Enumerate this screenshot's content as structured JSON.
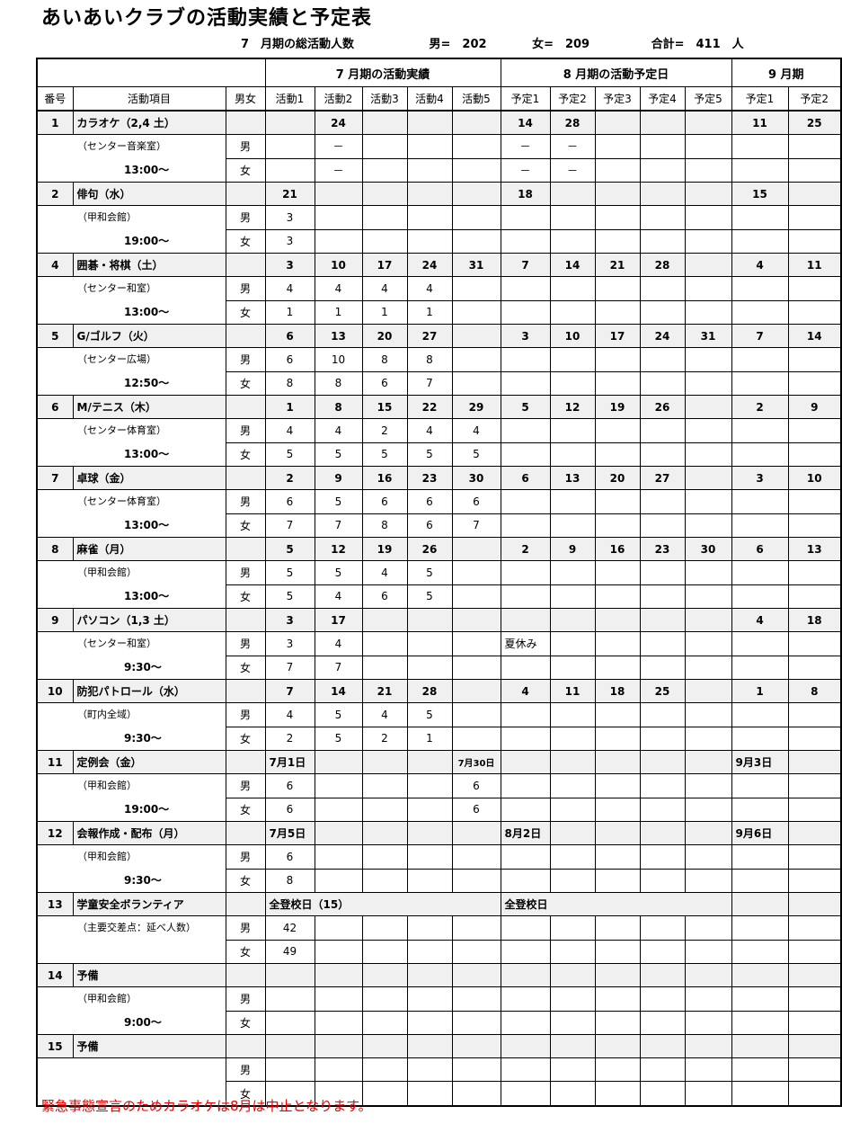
{
  "title": "あいあいクラブの活動実績と予定表",
  "summary": {
    "label": "7　月期の総活動人数",
    "male": "男=　202",
    "female": "女=　209",
    "total": "合計=　411　人"
  },
  "headers": {
    "july": "7 月期の活動実績",
    "aug": "8 月期の活動予定日",
    "sep": "9 月期",
    "cols": [
      "番号",
      "活動項目",
      "男女",
      "活動1",
      "活動2",
      "活動3",
      "活動4",
      "活動5",
      "予定1",
      "予定2",
      "予定3",
      "予定4",
      "予定5",
      "予定1",
      "予定2"
    ]
  },
  "gender": {
    "male": "男",
    "female": "女"
  },
  "activities": [
    {
      "no": "1",
      "name": "カラオケ（2,4 土）",
      "place": "（センター音楽室）",
      "time": "13:00～",
      "top": [
        "",
        "24",
        "",
        "",
        "",
        "14",
        "28",
        "",
        "",
        "",
        "11",
        "25"
      ],
      "male": [
        "",
        "－",
        "",
        "",
        "",
        "－",
        "－",
        "",
        "",
        "",
        "",
        ""
      ],
      "female": [
        "",
        "－",
        "",
        "",
        "",
        "－",
        "－",
        "",
        "",
        "",
        "",
        ""
      ]
    },
    {
      "no": "2",
      "name": "俳句（水）",
      "place": "（甲和会館）",
      "time": "19:00～",
      "top": [
        "21",
        "",
        "",
        "",
        "",
        "18",
        "",
        "",
        "",
        "",
        "15",
        ""
      ],
      "male": [
        "3",
        "",
        "",
        "",
        "",
        "",
        "",
        "",
        "",
        "",
        "",
        ""
      ],
      "female": [
        "3",
        "",
        "",
        "",
        "",
        "",
        "",
        "",
        "",
        "",
        "",
        ""
      ]
    },
    {
      "no": "4",
      "name": "囲碁・将棋（土）",
      "place": "（センター和室）",
      "time": "13:00～",
      "top": [
        "3",
        "10",
        "17",
        "24",
        "31",
        "7",
        "14",
        "21",
        "28",
        "",
        "4",
        "11"
      ],
      "male": [
        "4",
        "4",
        "4",
        "4",
        "",
        "",
        "",
        "",
        "",
        "",
        "",
        ""
      ],
      "female": [
        "1",
        "1",
        "1",
        "1",
        "",
        "",
        "",
        "",
        "",
        "",
        "",
        ""
      ]
    },
    {
      "no": "5",
      "name": "G/ゴルフ（火）",
      "place": "（センター広場）",
      "time": "12:50～",
      "top": [
        "6",
        "13",
        "20",
        "27",
        "",
        "3",
        "10",
        "17",
        "24",
        "31",
        "7",
        "14"
      ],
      "male": [
        "6",
        "10",
        "8",
        "8",
        "",
        "",
        "",
        "",
        "",
        "",
        "",
        ""
      ],
      "female": [
        "8",
        "8",
        "6",
        "7",
        "",
        "",
        "",
        "",
        "",
        "",
        "",
        ""
      ]
    },
    {
      "no": "6",
      "name": "M/テニス（木）",
      "place": "（センター体育室）",
      "time": "13:00～",
      "top": [
        "1",
        "8",
        "15",
        "22",
        "29",
        "5",
        "12",
        "19",
        "26",
        "",
        "2",
        "9"
      ],
      "male": [
        "4",
        "4",
        "2",
        "4",
        "4",
        "",
        "",
        "",
        "",
        "",
        "",
        ""
      ],
      "female": [
        "5",
        "5",
        "5",
        "5",
        "5",
        "",
        "",
        "",
        "",
        "",
        "",
        ""
      ]
    },
    {
      "no": "7",
      "name": "卓球（金）",
      "place": "（センター体育室）",
      "time": "13:00～",
      "top": [
        "2",
        "9",
        "16",
        "23",
        "30",
        "6",
        "13",
        "20",
        "27",
        "",
        "3",
        "10"
      ],
      "male": [
        "6",
        "5",
        "6",
        "6",
        "6",
        "",
        "",
        "",
        "",
        "",
        "",
        ""
      ],
      "female": [
        "7",
        "7",
        "8",
        "6",
        "7",
        "",
        "",
        "",
        "",
        "",
        "",
        ""
      ]
    },
    {
      "no": "8",
      "name": "麻雀（月）",
      "place": "（甲和会館）",
      "time": "13:00～",
      "top": [
        "5",
        "12",
        "19",
        "26",
        "",
        "2",
        "9",
        "16",
        "23",
        "30",
        "6",
        "13"
      ],
      "male": [
        "5",
        "5",
        "4",
        "5",
        "",
        "",
        "",
        "",
        "",
        "",
        "",
        ""
      ],
      "female": [
        "5",
        "4",
        "6",
        "5",
        "",
        "",
        "",
        "",
        "",
        "",
        "",
        ""
      ]
    },
    {
      "no": "9",
      "name": "パソコン（1,3 土）",
      "place": "（センター和室）",
      "time": "9:30～",
      "top": [
        "3",
        "17",
        "",
        "",
        "",
        "",
        "",
        "",
        "",
        "",
        "4",
        "18"
      ],
      "male": [
        "3",
        "4",
        "",
        "",
        "",
        "夏休み",
        "",
        "",
        "",
        "",
        "",
        ""
      ],
      "female": [
        "7",
        "7",
        "",
        "",
        "",
        "",
        "",
        "",
        "",
        "",
        "",
        ""
      ]
    },
    {
      "no": "10",
      "name": "防犯パトロール（水）",
      "place": "（町内全域）",
      "time": "9:30～",
      "top": [
        "7",
        "14",
        "21",
        "28",
        "",
        "4",
        "11",
        "18",
        "25",
        "",
        "1",
        "8"
      ],
      "male": [
        "4",
        "5",
        "4",
        "5",
        "",
        "",
        "",
        "",
        "",
        "",
        "",
        ""
      ],
      "female": [
        "2",
        "5",
        "2",
        "1",
        "",
        "",
        "",
        "",
        "",
        "",
        "",
        ""
      ]
    },
    {
      "no": "11",
      "name": "定例会（金）",
      "place": "（甲和会館）",
      "time": "19:00～",
      "top": [
        "7月1日",
        "",
        "",
        "",
        "7月30日",
        "",
        "",
        "",
        "",
        "",
        "9月3日",
        ""
      ],
      "male": [
        "6",
        "",
        "",
        "",
        "6",
        "",
        "",
        "",
        "",
        "",
        "",
        ""
      ],
      "female": [
        "6",
        "",
        "",
        "",
        "6",
        "",
        "",
        "",
        "",
        "",
        "",
        ""
      ]
    },
    {
      "no": "12",
      "name": "会報作成・配布（月）",
      "place": "（甲和会館）",
      "time": "9:30～",
      "top": [
        "7月5日",
        "",
        "",
        "",
        "",
        "8月2日",
        "",
        "",
        "",
        "",
        "9月6日",
        ""
      ],
      "male": [
        "6",
        "",
        "",
        "",
        "",
        "",
        "",
        "",
        "",
        "",
        "",
        ""
      ],
      "female": [
        "8",
        "",
        "",
        "",
        "",
        "",
        "",
        "",
        "",
        "",
        "",
        ""
      ]
    },
    {
      "no": "13",
      "name": "学童安全ボランティア",
      "place": "（主要交差点：延べ人数）",
      "time": "",
      "top": [
        {
          "text": "全登校日（15）",
          "span": 5
        },
        {
          "text": "全登校日",
          "span": 5
        },
        "",
        ""
      ],
      "male": [
        "42",
        "",
        "",
        "",
        "",
        "",
        "",
        "",
        "",
        "",
        "",
        ""
      ],
      "female": [
        "49",
        "",
        "",
        "",
        "",
        "",
        "",
        "",
        "",
        "",
        "",
        ""
      ],
      "female_no_gender_blank": false
    },
    {
      "no": "14",
      "name": "予備",
      "place": "（甲和会館）",
      "time": "9:00～",
      "top": [
        "",
        "",
        "",
        "",
        "",
        "",
        "",
        "",
        "",
        "",
        "",
        ""
      ],
      "male": [
        "",
        "",
        "",
        "",
        "",
        "",
        "",
        "",
        "",
        "",
        "",
        ""
      ],
      "female": [
        "",
        "",
        "",
        "",
        "",
        "",
        "",
        "",
        "",
        "",
        "",
        ""
      ]
    },
    {
      "no": "15",
      "name": "予備",
      "place": "",
      "time": "",
      "top": [
        "",
        "",
        "",
        "",
        "",
        "",
        "",
        "",
        "",
        "",
        "",
        ""
      ],
      "male": [
        "",
        "",
        "",
        "",
        "",
        "",
        "",
        "",
        "",
        "",
        "",
        ""
      ],
      "female": [
        "",
        "",
        "",
        "",
        "",
        "",
        "",
        "",
        "",
        "",
        "",
        ""
      ]
    }
  ],
  "note": "緊急事態宣言のためカラオケは8月は中止となります。",
  "colors": {
    "note": "#e00000",
    "group_row_bg": "#f0f0f0"
  }
}
